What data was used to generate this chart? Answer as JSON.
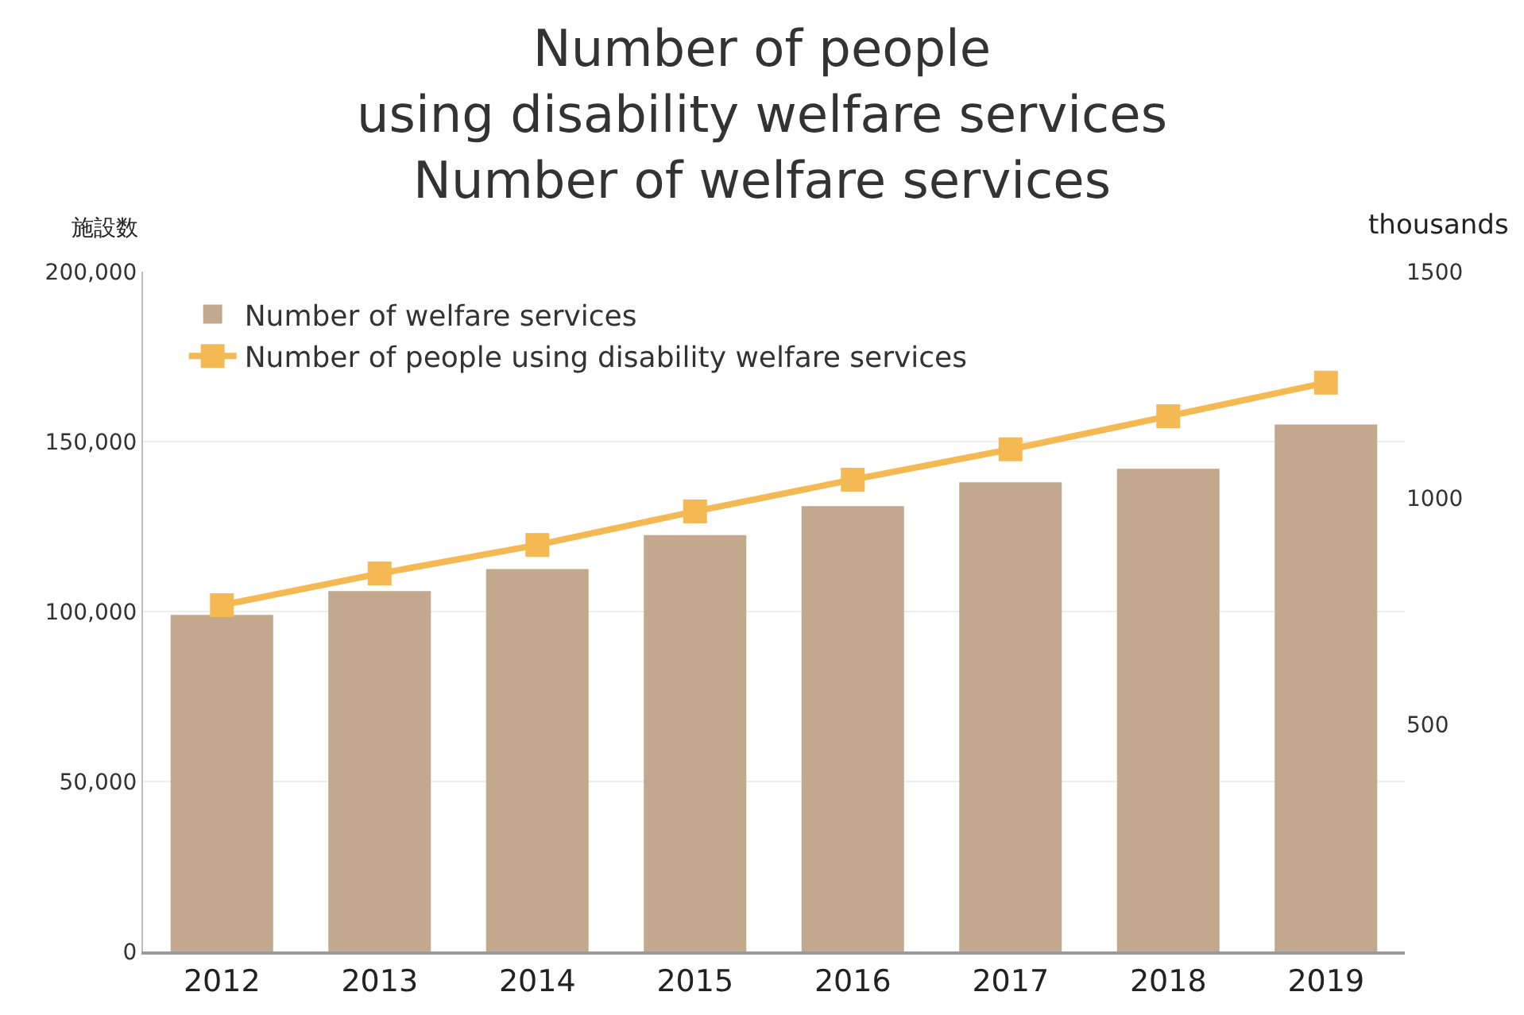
{
  "chart_data": {
    "type": "bar",
    "title": "Number of people\nusing disability welfare services\nNumber of welfare services",
    "ylabel": "施設数",
    "y2label": "thousands",
    "categories": [
      "2012",
      "2013",
      "2014",
      "2015",
      "2016",
      "2017",
      "2018",
      "2019"
    ],
    "series": [
      {
        "name": "Number of welfare services",
        "color": "#c2a98e",
        "values": [
          99000,
          106000,
          112500,
          122500,
          131000,
          138000,
          142000,
          155000
        ]
      },
      {
        "name": "Number of people using disability welfare services",
        "type": "line",
        "axis": "y2",
        "color": "#f5b953",
        "marker": "square",
        "values": [
          764,
          834,
          897,
          971,
          1041,
          1108,
          1181,
          1255
        ]
      }
    ],
    "ylim": [
      0,
      200000
    ],
    "yticks": [
      {
        "value": 0,
        "label": "0"
      },
      {
        "value": 50000,
        "label": "50,000"
      },
      {
        "value": 100000,
        "label": "100,000"
      },
      {
        "value": 150000,
        "label": "150,000"
      },
      {
        "value": 200000,
        "label": "200,000"
      }
    ],
    "y2lim": [
      0,
      1500
    ],
    "y2ticks": [
      500,
      1000,
      1500
    ],
    "grid": "y",
    "legend": "top left"
  }
}
